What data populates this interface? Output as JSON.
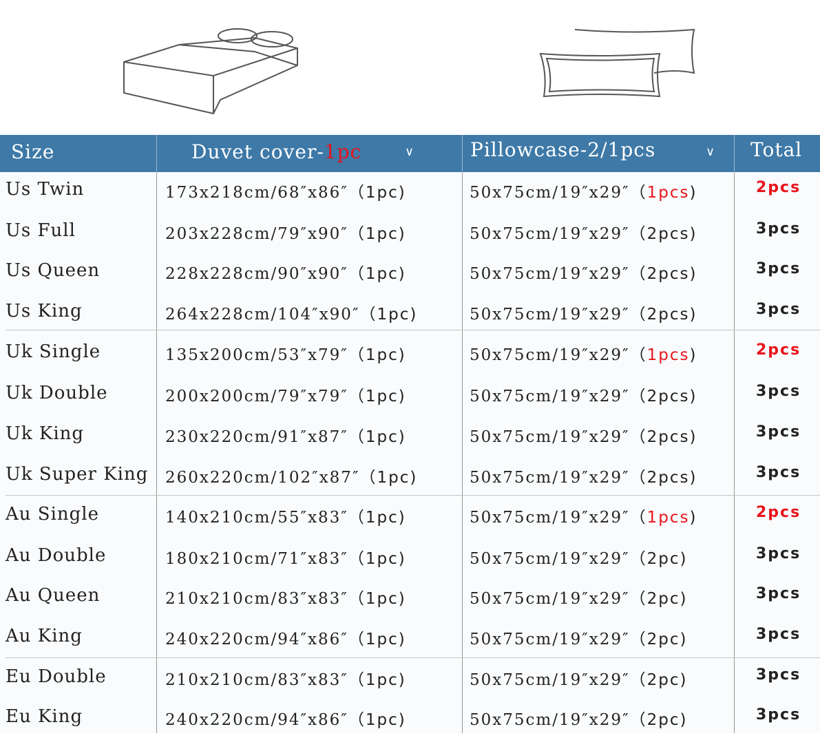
{
  "header": {
    "size": "Size",
    "duvet": "Duvet cover-",
    "duvet_qty": "1pc",
    "pillow": "Pillowcase-2/1pcs",
    "total": "Total"
  },
  "colors": {
    "header_bg": "#3e79a7",
    "highlight": "#e8141b"
  },
  "icons": {
    "bed": "bed-illustration",
    "pillows": "pillows-illustration",
    "chevron": "chevron-down-icon"
  },
  "rows": [
    {
      "size": "Us Twin",
      "duvet": "173x218cm/68″x86″",
      "duvet_qty": "（1pc)",
      "pillow": "50x75cm/19″x29″",
      "pillow_qty": "1pcs",
      "pillow_red": true,
      "total": "2pcs",
      "total_red": true
    },
    {
      "size": "Us Full",
      "duvet": "203x228cm/79″x90″",
      "duvet_qty": "（1pc)",
      "pillow": "50x75cm/19″x29″",
      "pillow_qty": "2pcs",
      "total": "3pcs"
    },
    {
      "size": "Us Queen",
      "duvet": "228x228cm/90″x90″",
      "duvet_qty": "（1pc)",
      "pillow": "50x75cm/19″x29″",
      "pillow_qty": "2pcs",
      "total": "3pcs"
    },
    {
      "size": "Us King",
      "duvet": "264x228cm/104″x90″",
      "duvet_qty": "（1pc)",
      "pillow": "50x75cm/19″x29″",
      "pillow_qty": "2pcs",
      "total": "3pcs"
    },
    {
      "size": "Uk Single",
      "duvet": "135x200cm/53″x79″",
      "duvet_qty": "（1pc)",
      "pillow": "50x75cm/19″x29″",
      "pillow_qty": "1pcs",
      "pillow_red": true,
      "total": "2pcs",
      "total_red": true
    },
    {
      "size": "Uk Double",
      "duvet": "200x200cm/79″x79″",
      "duvet_qty": "（1pc)",
      "pillow": "50x75cm/19″x29″",
      "pillow_qty": "2pcs",
      "total": "3pcs"
    },
    {
      "size": "Uk King",
      "duvet": "230x220cm/91″x87″",
      "duvet_qty": "（1pc)",
      "pillow": "50x75cm/19″x29″",
      "pillow_qty": "2pcs",
      "total": "3pcs"
    },
    {
      "size": "Uk Super King",
      "duvet": "260x220cm/102″x87″",
      "duvet_qty": "（1pc)",
      "pillow": "50x75cm/19″x29″",
      "pillow_qty": "2pcs",
      "total": "3pcs"
    },
    {
      "size": "Au Single",
      "duvet": "140x210cm/55″x83″",
      "duvet_qty": "（1pc)",
      "pillow": "50x75cm/19″x29″",
      "pillow_qty": "1pcs",
      "pillow_red": true,
      "total": "2pcs",
      "total_red": true
    },
    {
      "size": "Au Double",
      "duvet": "180x210cm/71″x83″",
      "duvet_qty": "（1pc)",
      "pillow": "50x75cm/19″x29″",
      "pillow_qty": "2pc",
      "total": "3pcs"
    },
    {
      "size": "Au Queen",
      "duvet": "210x210cm/83″x83″",
      "duvet_qty": "（1pc)",
      "pillow": "50x75cm/19″x29″",
      "pillow_qty": "2pc",
      "total": "3pcs"
    },
    {
      "size": "Au King",
      "duvet": "240x220cm/94″x86″",
      "duvet_qty": "（1pc)",
      "pillow": "50x75cm/19″x29″",
      "pillow_qty": "2pc",
      "total": "3pcs"
    },
    {
      "size": "Eu Double",
      "duvet": "210x210cm/83″x83″",
      "duvet_qty": "（1pc)",
      "pillow": "50x75cm/19″x29″",
      "pillow_qty": "2pc",
      "total": "3pcs"
    },
    {
      "size": "Eu King",
      "duvet": "240x220cm/94″x86″",
      "duvet_qty": "（1pc)",
      "pillow": "50x75cm/19″x29″",
      "pillow_qty": "2pc",
      "total": "3pcs"
    }
  ]
}
